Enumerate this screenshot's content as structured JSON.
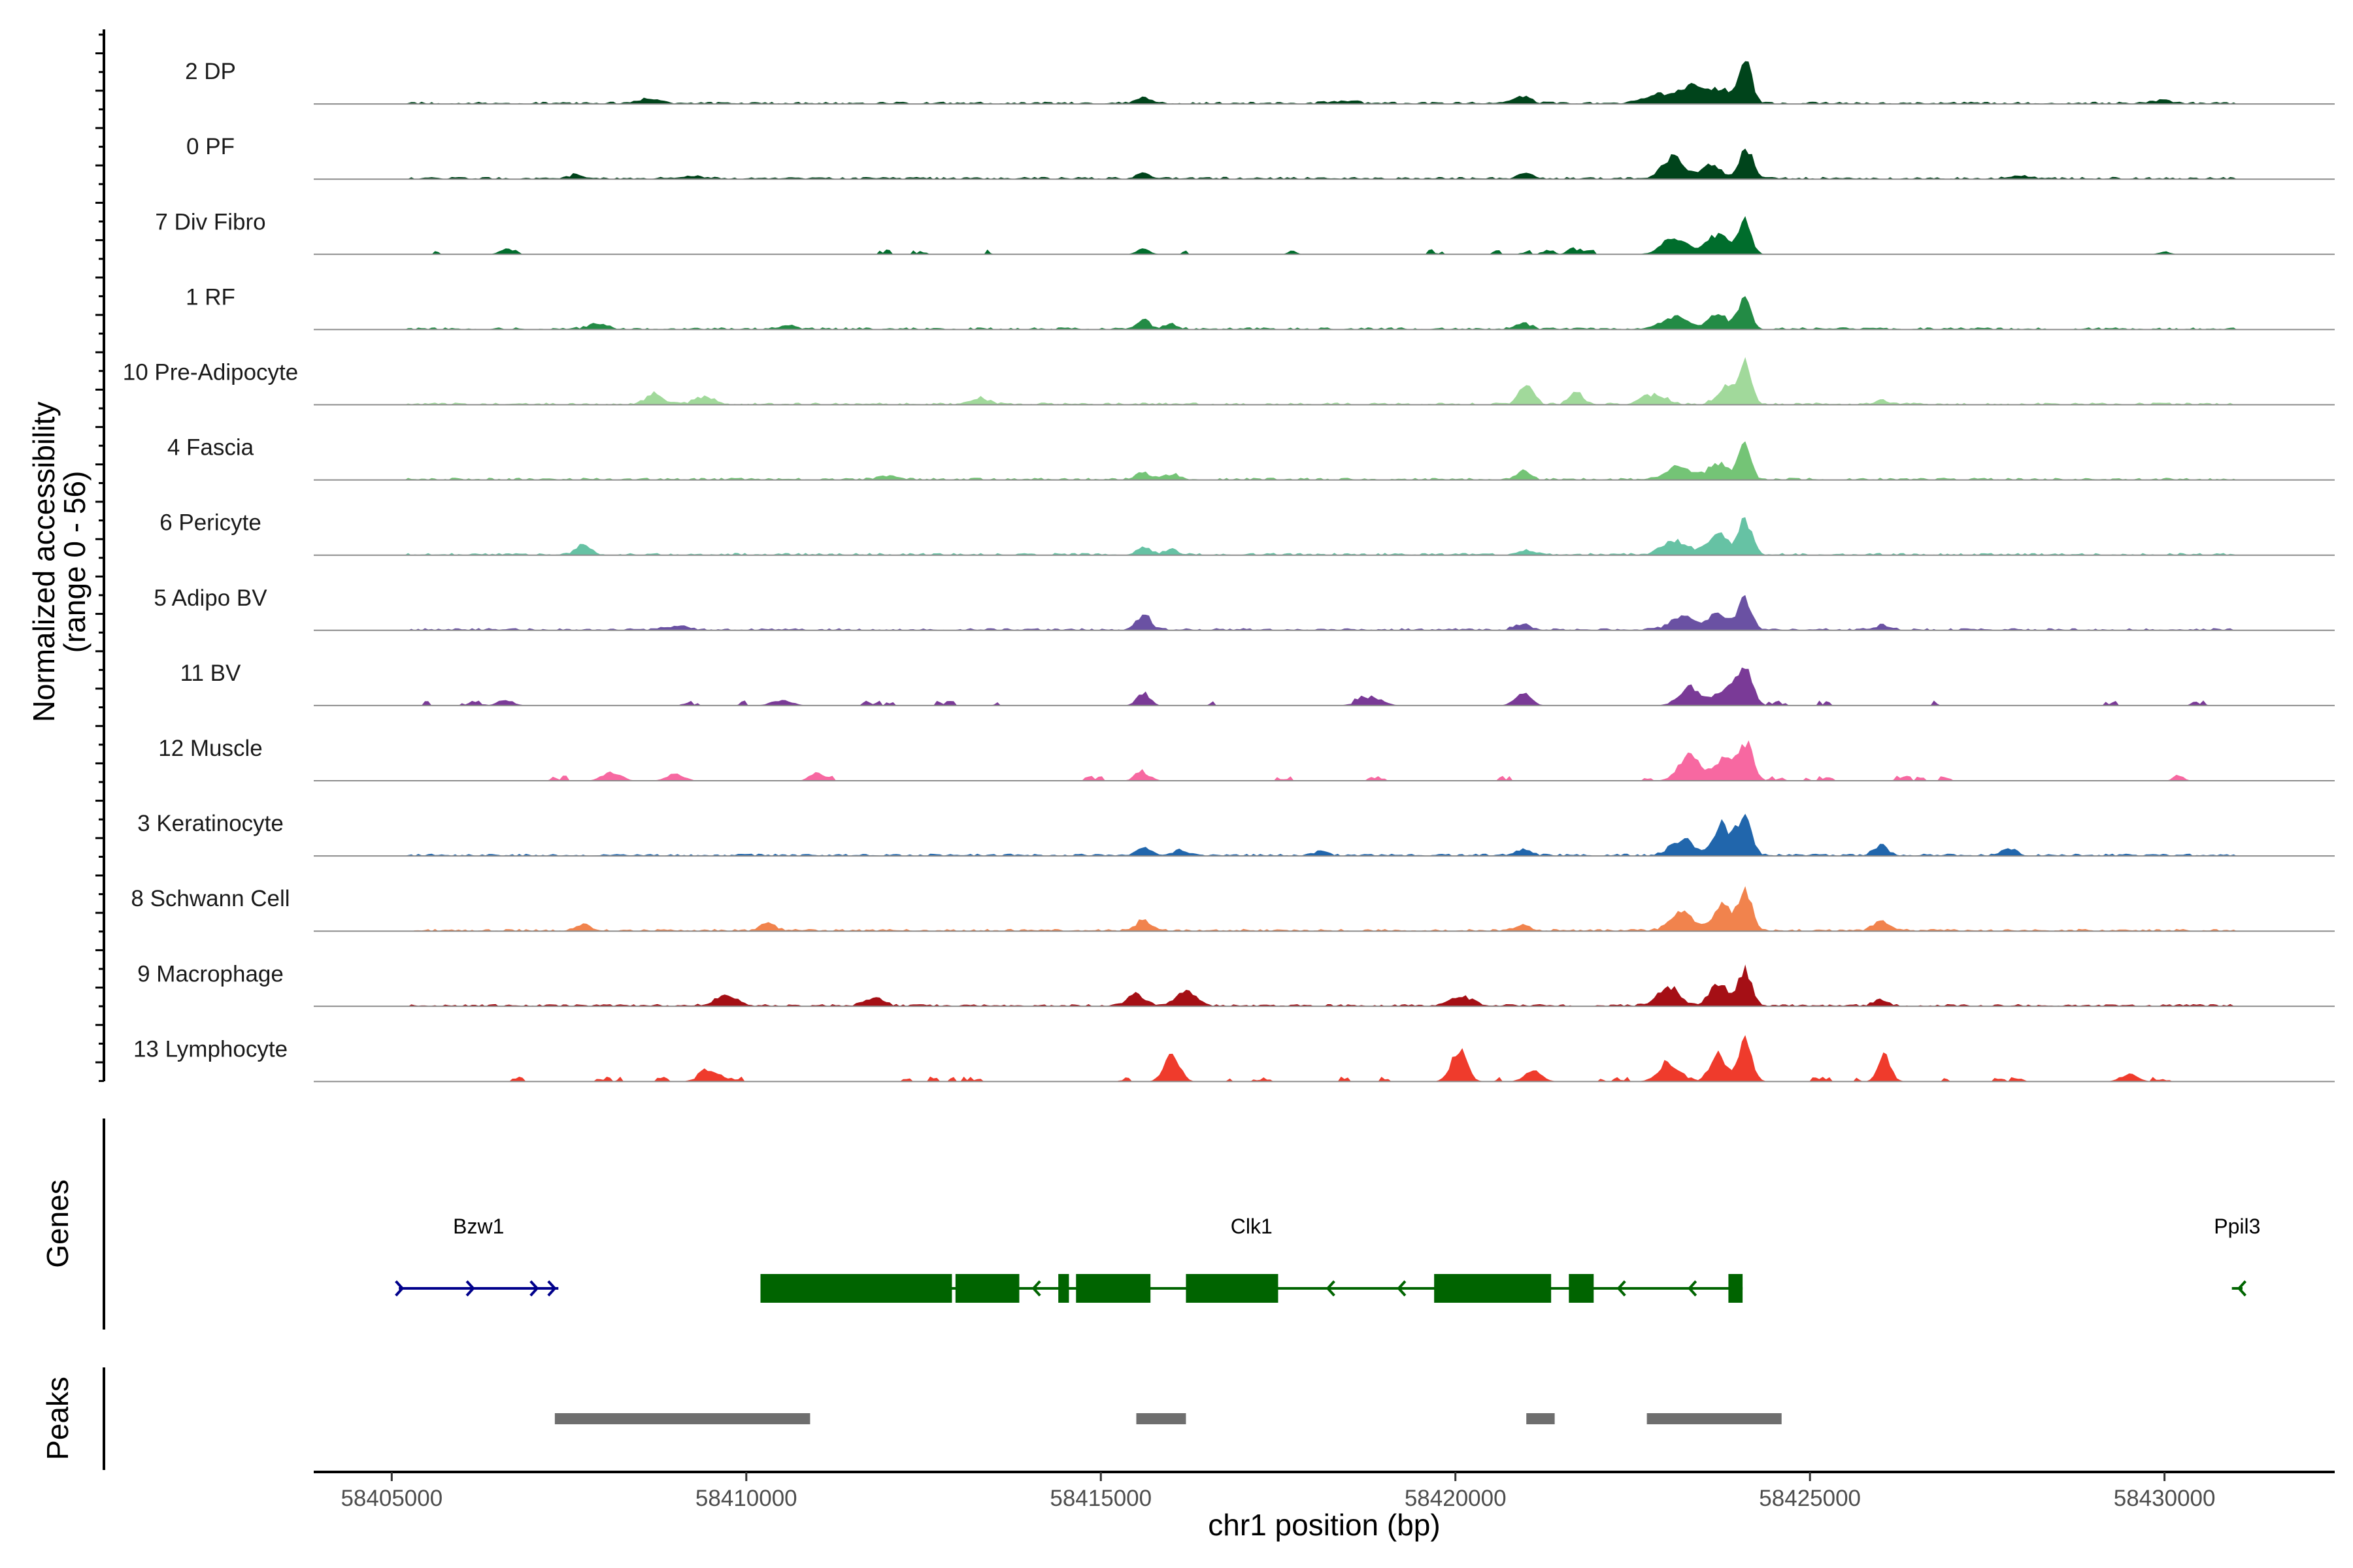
{
  "chart_data": {
    "type": "area",
    "title": "",
    "xlabel": "chr1 position (bp)",
    "ylabel": "Normalized accessibility",
    "ylabel_sub": "(range 0 - 56)",
    "ylim": [
      0,
      56
    ],
    "xlim": [
      58403900,
      58432400
    ],
    "x_ticks": [
      58405000,
      58410000,
      58415000,
      58420000,
      58425000,
      58430000
    ],
    "x_tick_labels": [
      "58405000",
      "58410000",
      "58415000",
      "58420000",
      "58425000",
      "58430000"
    ],
    "series": [
      {
        "name": "2 DP",
        "color": "#00441b",
        "density": 0.95,
        "sparse": false,
        "peaks": [
          [
            58424090,
            56,
            90
          ],
          [
            58423750,
            20,
            140
          ],
          [
            58423350,
            24,
            160
          ],
          [
            58422900,
            12,
            220
          ],
          [
            58420950,
            9,
            120
          ],
          [
            58415600,
            8,
            110
          ],
          [
            58430000,
            4,
            140
          ],
          [
            58408600,
            5,
            160
          ],
          [
            58418400,
            3,
            200
          ]
        ]
      },
      {
        "name": "0 PF",
        "color": "#00441b",
        "density": 0.95,
        "sparse": false,
        "peaks": [
          [
            58424100,
            44,
            90
          ],
          [
            58423600,
            20,
            150
          ],
          [
            58423050,
            30,
            140
          ],
          [
            58421000,
            7,
            100
          ],
          [
            58415600,
            7,
            100
          ],
          [
            58407600,
            7,
            80
          ],
          [
            58409200,
            3,
            200
          ],
          [
            58428000,
            3,
            150
          ]
        ]
      },
      {
        "name": "7 Div Fibro",
        "color": "#006d2c",
        "density": 0.3,
        "sparse": true,
        "peaks": [
          [
            58424080,
            50,
            90
          ],
          [
            58423700,
            28,
            150
          ],
          [
            58423100,
            22,
            180
          ],
          [
            58415600,
            8,
            90
          ],
          [
            58421650,
            9,
            70
          ],
          [
            58406600,
            6,
            90
          ],
          [
            58417700,
            5,
            60
          ],
          [
            58430000,
            4,
            80
          ]
        ]
      },
      {
        "name": "1 RF",
        "color": "#238b45",
        "density": 0.9,
        "sparse": false,
        "peaks": [
          [
            58424070,
            44,
            90
          ],
          [
            58423700,
            20,
            130
          ],
          [
            58423100,
            18,
            170
          ],
          [
            58415600,
            12,
            100
          ],
          [
            58416000,
            7,
            90
          ],
          [
            58420950,
            9,
            100
          ],
          [
            58407900,
            6,
            140
          ],
          [
            58410600,
            5,
            120
          ]
        ]
      },
      {
        "name": "10 Pre-Adipocyte",
        "color": "#a1d99b",
        "density": 0.85,
        "sparse": false,
        "peaks": [
          [
            58424080,
            56,
            90
          ],
          [
            58423800,
            22,
            120
          ],
          [
            58421000,
            26,
            100
          ],
          [
            58421700,
            18,
            90
          ],
          [
            58422800,
            14,
            160
          ],
          [
            58408700,
            14,
            120
          ],
          [
            58409400,
            10,
            140
          ],
          [
            58413300,
            8,
            120
          ],
          [
            58426000,
            5,
            80
          ]
        ]
      },
      {
        "name": "4 Fascia",
        "color": "#74c476",
        "density": 0.9,
        "sparse": false,
        "peaks": [
          [
            58424070,
            48,
            90
          ],
          [
            58423700,
            22,
            140
          ],
          [
            58423150,
            18,
            170
          ],
          [
            58420950,
            12,
            90
          ],
          [
            58415600,
            10,
            100
          ],
          [
            58416000,
            8,
            90
          ],
          [
            58412000,
            4,
            140
          ]
        ]
      },
      {
        "name": "6 Pericyte",
        "color": "#66c2a4",
        "density": 0.85,
        "sparse": false,
        "peaks": [
          [
            58424090,
            50,
            90
          ],
          [
            58423700,
            30,
            140
          ],
          [
            58423100,
            20,
            170
          ],
          [
            58407700,
            14,
            100
          ],
          [
            58415600,
            10,
            100
          ],
          [
            58416000,
            8,
            90
          ],
          [
            58421000,
            7,
            100
          ]
        ]
      },
      {
        "name": "5 Adipo BV",
        "color": "#6a51a3",
        "density": 0.9,
        "sparse": false,
        "peaks": [
          [
            58424080,
            44,
            90
          ],
          [
            58423700,
            20,
            140
          ],
          [
            58423200,
            18,
            170
          ],
          [
            58415600,
            22,
            90
          ],
          [
            58420950,
            9,
            110
          ],
          [
            58426000,
            6,
            110
          ],
          [
            58409000,
            5,
            150
          ]
        ]
      },
      {
        "name": "11 BV",
        "color": "#7a3a97",
        "density": 0.5,
        "sparse": true,
        "peaks": [
          [
            58424090,
            56,
            100
          ],
          [
            58423300,
            26,
            150
          ],
          [
            58423800,
            22,
            140
          ],
          [
            58415600,
            18,
            90
          ],
          [
            58420950,
            18,
            110
          ],
          [
            58418800,
            12,
            160
          ],
          [
            58406600,
            8,
            110
          ],
          [
            58410500,
            7,
            150
          ]
        ]
      },
      {
        "name": "12 Muscle",
        "color": "#f768a1",
        "density": 0.45,
        "sparse": true,
        "peaks": [
          [
            58424100,
            50,
            100
          ],
          [
            58423300,
            36,
            150
          ],
          [
            58423800,
            30,
            140
          ],
          [
            58408100,
            12,
            130
          ],
          [
            58409000,
            10,
            120
          ],
          [
            58411000,
            12,
            100
          ],
          [
            58415600,
            10,
            110
          ],
          [
            58430200,
            8,
            70
          ]
        ]
      },
      {
        "name": "3 Keratinocyte",
        "color": "#2166ac",
        "density": 0.95,
        "sparse": false,
        "peaks": [
          [
            58424070,
            56,
            100
          ],
          [
            58423750,
            44,
            110
          ],
          [
            58423200,
            22,
            160
          ],
          [
            58426000,
            14,
            100
          ],
          [
            58427800,
            9,
            110
          ],
          [
            58415600,
            10,
            100
          ],
          [
            58416100,
            8,
            90
          ],
          [
            58420950,
            9,
            100
          ],
          [
            58418100,
            7,
            80
          ]
        ]
      },
      {
        "name": "8 Schwann Cell",
        "color": "#f1834d",
        "density": 0.9,
        "sparse": false,
        "peaks": [
          [
            58424080,
            56,
            100
          ],
          [
            58423750,
            40,
            110
          ],
          [
            58423200,
            26,
            160
          ],
          [
            58426000,
            14,
            100
          ],
          [
            58415600,
            14,
            100
          ],
          [
            58410300,
            10,
            100
          ],
          [
            58420950,
            9,
            100
          ],
          [
            58407700,
            8,
            100
          ]
        ]
      },
      {
        "name": "9 Macrophage",
        "color": "#a50f15",
        "density": 0.9,
        "sparse": false,
        "peaks": [
          [
            58424080,
            50,
            100
          ],
          [
            58423700,
            32,
            120
          ],
          [
            58423000,
            26,
            150
          ],
          [
            58416200,
            20,
            140
          ],
          [
            58415500,
            16,
            120
          ],
          [
            58409700,
            14,
            160
          ],
          [
            58420100,
            12,
            150
          ],
          [
            58426000,
            8,
            100
          ],
          [
            58411800,
            10,
            140
          ]
        ]
      },
      {
        "name": "13 Lymphocyte",
        "color": "#ef3b2c",
        "density": 0.55,
        "sparse": true,
        "peaks": [
          [
            58424080,
            56,
            100
          ],
          [
            58423700,
            40,
            110
          ],
          [
            58420050,
            44,
            110
          ],
          [
            58416000,
            36,
            110
          ],
          [
            58426050,
            36,
            90
          ],
          [
            58423000,
            22,
            150
          ],
          [
            58421100,
            16,
            120
          ],
          [
            58409500,
            14,
            150
          ],
          [
            58429500,
            10,
            120
          ]
        ]
      }
    ],
    "genes_track": {
      "title": "Genes",
      "genes": [
        {
          "name": "Bzw1",
          "strand": "+",
          "start": 58405100,
          "end": 58407350,
          "color": "#00008b",
          "exons": [],
          "arrows": [
            58405150,
            58406150,
            58407050,
            58407300
          ]
        },
        {
          "name": "Clk1",
          "strand": "-",
          "start": 58410200,
          "end": 58424050,
          "color": "#006400",
          "exons": [
            [
              58410200,
              58412900
            ],
            [
              58412950,
              58413850
            ],
            [
              58414400,
              58414550
            ],
            [
              58414650,
              58415700
            ],
            [
              58416200,
              58417500
            ],
            [
              58419700,
              58421350
            ],
            [
              58421600,
              58421950
            ],
            [
              58423850,
              58424050
            ]
          ],
          "arrows": [
            58414050,
            58418200,
            58419200,
            58422300,
            58423300
          ]
        },
        {
          "name": "Ppil3",
          "strand": "-",
          "start": 58430950,
          "end": 58431100,
          "color": "#006400",
          "exons": [],
          "arrows": [
            58431050
          ]
        }
      ]
    },
    "peaks_track": {
      "title": "Peaks",
      "color": "#6e6e6e",
      "regions": [
        [
          58407300,
          58410900
        ],
        [
          58415500,
          58416200
        ],
        [
          58421000,
          58421400
        ],
        [
          58422700,
          58424600
        ]
      ]
    }
  }
}
